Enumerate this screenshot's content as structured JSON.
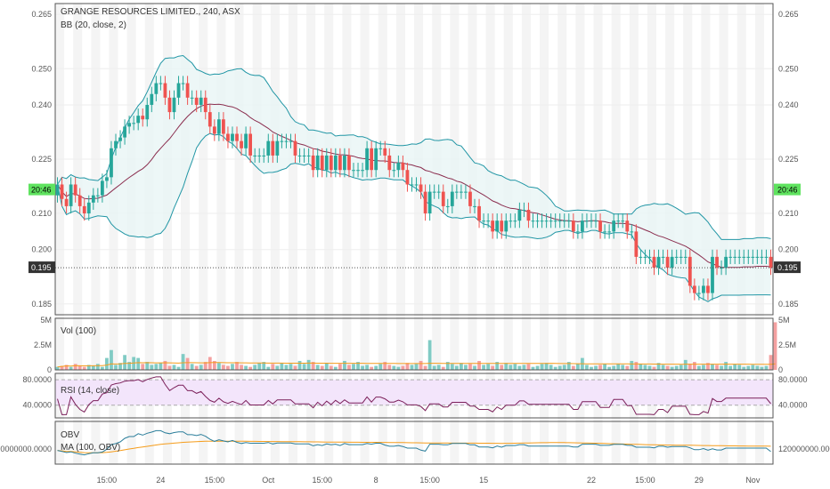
{
  "header": {
    "symbol_line": "GRANGE RESOURCES LIMITED., 240, ASX",
    "bb_label": "BB (20, close, 2)"
  },
  "price_axis": {
    "ticks": [
      "0.265",
      "0.250",
      "0.240",
      "0.225",
      "0.210",
      "0.200",
      "0.185"
    ],
    "tick_values": [
      0.265,
      0.25,
      0.24,
      0.225,
      0.21,
      0.2,
      0.185
    ],
    "range": [
      0.182,
      0.268
    ],
    "countdown_label": "20:46",
    "countdown_value": 0.2165,
    "last_price_label": "0.195",
    "last_price_value": 0.195
  },
  "time_axis": {
    "labels": [
      "15:00",
      "24",
      "15:00",
      "Oct",
      "15:00",
      "8",
      "15:00",
      "15",
      "22",
      "15:00",
      "29",
      "Nov"
    ],
    "label_bars": [
      11,
      23,
      35,
      47,
      59,
      71,
      83,
      95,
      119,
      131,
      143,
      155
    ]
  },
  "volume_pane": {
    "label": "Vol (100)",
    "ticks": [
      "5M",
      "2.5M",
      "0"
    ],
    "tick_values": [
      5,
      2.5,
      0
    ]
  },
  "rsi_pane": {
    "label": "RSI (14, close)",
    "ticks": [
      "80.0000",
      "40.0000"
    ],
    "tick_values": [
      80,
      40
    ]
  },
  "obv_pane": {
    "label": "OBV",
    "ma_label": "MA (100, OBV)",
    "tick": "120000000.0000"
  },
  "colors": {
    "up": "#26a69a",
    "down": "#ef5350",
    "bb_band": "#2196a5",
    "bb_basis": "#8b2e4f",
    "bb_fill": "#e8f5f5",
    "rsi_line": "#7b1f5a",
    "rsi_fill": "#f3e5fb",
    "obv_line": "#2a7d9a",
    "obv_ma": "#f59c1a",
    "countdown_bg": "#5fe35f",
    "last_price_bg": "#333333"
  },
  "chart_data": {
    "type": "candlestick",
    "title": "GRANGE RESOURCES LIMITED., 240, ASX",
    "interval": "240",
    "ylim": [
      0.182,
      0.268
    ],
    "bar_count": 160,
    "open": [
      0.215,
      0.218,
      0.214,
      0.212,
      0.218,
      0.215,
      0.212,
      0.21,
      0.213,
      0.215,
      0.215,
      0.219,
      0.22,
      0.228,
      0.23,
      0.231,
      0.234,
      0.235,
      0.235,
      0.237,
      0.236,
      0.24,
      0.243,
      0.246,
      0.246,
      0.242,
      0.238,
      0.242,
      0.246,
      0.246,
      0.242,
      0.242,
      0.24,
      0.242,
      0.238,
      0.234,
      0.232,
      0.236,
      0.232,
      0.23,
      0.232,
      0.23,
      0.228,
      0.232,
      0.226,
      0.226,
      0.226,
      0.226,
      0.23,
      0.226,
      0.23,
      0.23,
      0.23,
      0.23,
      0.226,
      0.226,
      0.226,
      0.226,
      0.222,
      0.226,
      0.222,
      0.226,
      0.222,
      0.226,
      0.222,
      0.226,
      0.222,
      0.222,
      0.222,
      0.222,
      0.228,
      0.222,
      0.228,
      0.228,
      0.226,
      0.222,
      0.222,
      0.224,
      0.222,
      0.218,
      0.218,
      0.218,
      0.216,
      0.21,
      0.216,
      0.216,
      0.216,
      0.212,
      0.212,
      0.216,
      0.216,
      0.216,
      0.216,
      0.212,
      0.212,
      0.208,
      0.208,
      0.208,
      0.205,
      0.208,
      0.205,
      0.208,
      0.208,
      0.208,
      0.211,
      0.211,
      0.208,
      0.208,
      0.208,
      0.208,
      0.208,
      0.208,
      0.208,
      0.208,
      0.208,
      0.208,
      0.205,
      0.205,
      0.208,
      0.208,
      0.208,
      0.208,
      0.205,
      0.205,
      0.205,
      0.208,
      0.208,
      0.208,
      0.205,
      0.205,
      0.198,
      0.198,
      0.198,
      0.198,
      0.195,
      0.198,
      0.198,
      0.195,
      0.198,
      0.198,
      0.198,
      0.198,
      0.19,
      0.188,
      0.188,
      0.19,
      0.188,
      0.198,
      0.195,
      0.195,
      0.198,
      0.198,
      0.198,
      0.198,
      0.198,
      0.198,
      0.198,
      0.198,
      0.198,
      0.198
    ],
    "close": [
      0.218,
      0.214,
      0.212,
      0.218,
      0.215,
      0.212,
      0.21,
      0.213,
      0.215,
      0.215,
      0.219,
      0.22,
      0.228,
      0.23,
      0.231,
      0.234,
      0.235,
      0.235,
      0.237,
      0.236,
      0.24,
      0.243,
      0.246,
      0.246,
      0.242,
      0.238,
      0.242,
      0.246,
      0.246,
      0.242,
      0.242,
      0.24,
      0.242,
      0.238,
      0.234,
      0.232,
      0.236,
      0.232,
      0.23,
      0.232,
      0.23,
      0.228,
      0.232,
      0.226,
      0.226,
      0.226,
      0.226,
      0.23,
      0.226,
      0.23,
      0.23,
      0.23,
      0.23,
      0.226,
      0.226,
      0.226,
      0.226,
      0.222,
      0.226,
      0.222,
      0.226,
      0.222,
      0.226,
      0.222,
      0.226,
      0.222,
      0.222,
      0.222,
      0.222,
      0.228,
      0.222,
      0.228,
      0.228,
      0.226,
      0.222,
      0.222,
      0.224,
      0.222,
      0.218,
      0.218,
      0.218,
      0.216,
      0.21,
      0.216,
      0.216,
      0.216,
      0.212,
      0.212,
      0.216,
      0.216,
      0.216,
      0.216,
      0.212,
      0.212,
      0.208,
      0.208,
      0.208,
      0.205,
      0.208,
      0.205,
      0.208,
      0.208,
      0.208,
      0.211,
      0.211,
      0.208,
      0.208,
      0.208,
      0.208,
      0.208,
      0.208,
      0.208,
      0.208,
      0.208,
      0.208,
      0.205,
      0.205,
      0.208,
      0.208,
      0.208,
      0.208,
      0.205,
      0.205,
      0.205,
      0.208,
      0.208,
      0.208,
      0.205,
      0.205,
      0.198,
      0.198,
      0.198,
      0.198,
      0.195,
      0.198,
      0.198,
      0.195,
      0.198,
      0.198,
      0.198,
      0.198,
      0.19,
      0.188,
      0.188,
      0.19,
      0.188,
      0.198,
      0.195,
      0.195,
      0.198,
      0.198,
      0.198,
      0.198,
      0.198,
      0.198,
      0.198,
      0.198,
      0.198,
      0.198,
      0.195
    ],
    "volume_m": [
      0.3,
      0.4,
      0.5,
      0.3,
      0.6,
      0.4,
      0.3,
      0.5,
      0.4,
      0.6,
      0.3,
      1.2,
      2.0,
      0.5,
      0.7,
      1.5,
      0.8,
      1.3,
      1.2,
      0.6,
      0.8,
      0.5,
      0.6,
      0.7,
      0.9,
      0.4,
      0.5,
      0.3,
      1.6,
      1.2,
      0.6,
      0.4,
      0.5,
      0.8,
      1.3,
      0.9,
      0.7,
      0.5,
      0.4,
      0.6,
      0.8,
      0.5,
      0.4,
      0.3,
      0.5,
      0.7,
      0.8,
      0.3,
      0.6,
      0.4,
      0.7,
      0.5,
      0.6,
      0.4,
      0.9,
      0.6,
      1.0,
      0.8,
      0.5,
      0.4,
      0.7,
      0.4,
      0.3,
      0.6,
      0.9,
      0.5,
      0.6,
      0.8,
      0.4,
      0.5,
      0.3,
      0.4,
      0.6,
      0.8,
      0.5,
      0.4,
      0.3,
      0.4,
      0.7,
      0.5,
      0.6,
      0.9,
      0.4,
      3.0,
      0.4,
      0.5,
      0.3,
      0.8,
      0.6,
      0.4,
      0.7,
      0.5,
      0.6,
      0.4,
      0.9,
      0.5,
      0.6,
      0.4,
      0.8,
      0.5,
      0.7,
      0.5,
      0.6,
      0.4,
      0.5,
      0.6,
      0.3,
      0.4,
      0.6,
      0.7,
      0.5,
      0.3,
      0.4,
      0.5,
      0.8,
      0.4,
      0.6,
      1.2,
      0.5,
      0.3,
      0.4,
      0.5,
      0.6,
      0.3,
      0.4,
      0.6,
      0.5,
      0.4,
      0.9,
      0.8,
      0.6,
      0.5,
      0.4,
      0.3,
      0.7,
      0.5,
      0.4,
      0.3,
      0.4,
      0.5,
      1.0,
      0.6,
      0.8,
      0.4,
      0.5,
      0.7,
      0.6,
      0.5,
      0.4,
      0.8,
      0.4,
      0.6,
      0.5,
      0.3,
      0.4,
      0.5,
      0.4,
      0.3,
      0.4,
      1.5,
      4.8
    ]
  }
}
